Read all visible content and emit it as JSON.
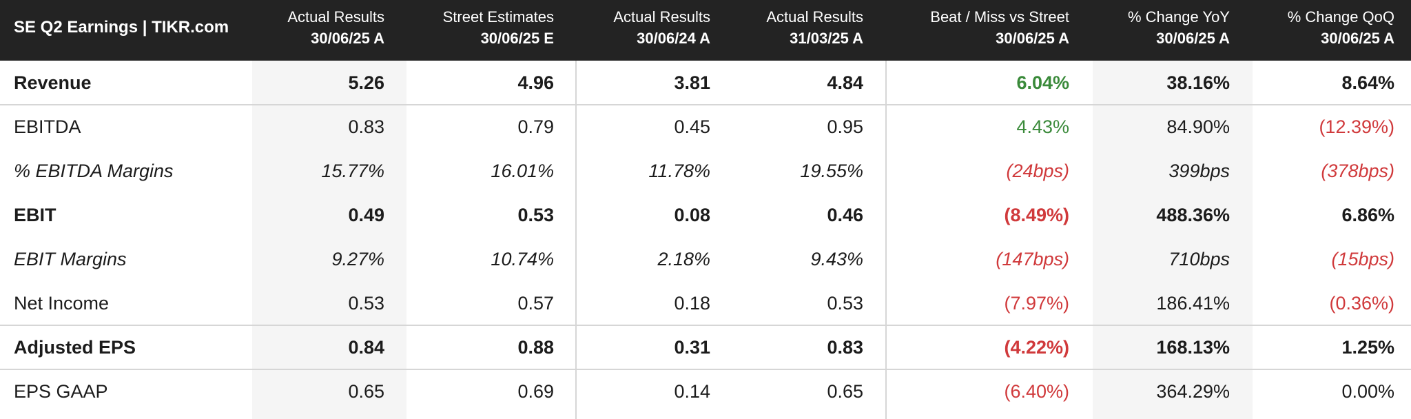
{
  "chart_data": {
    "type": "table",
    "title": "SE Q2 Earnings | TIKR.com",
    "columns": [
      {
        "label": "Actual Results",
        "period": "30/06/25 A"
      },
      {
        "label": "Street Estimates",
        "period": "30/06/25 E"
      },
      {
        "label": "Actual Results",
        "period": "30/06/24 A"
      },
      {
        "label": "Actual Results",
        "period": "31/03/25 A"
      },
      {
        "label": "Beat / Miss vs Street",
        "period": "30/06/25 A"
      },
      {
        "label": "% Change YoY",
        "period": "30/06/25 A"
      },
      {
        "label": "% Change QoQ",
        "period": "30/06/25 A"
      }
    ],
    "rows": [
      {
        "label": "Revenue",
        "values": [
          "5.26",
          "4.96",
          "3.81",
          "4.84",
          "6.04%",
          "38.16%",
          "8.64%"
        ],
        "tones": [
          "",
          "",
          "",
          "",
          "pos",
          "",
          ""
        ]
      },
      {
        "label": "EBITDA",
        "values": [
          "0.83",
          "0.79",
          "0.45",
          "0.95",
          "4.43%",
          "84.90%",
          "(12.39%)"
        ],
        "tones": [
          "",
          "",
          "",
          "",
          "pos",
          "",
          "neg"
        ]
      },
      {
        "label": "% EBITDA Margins",
        "values": [
          "15.77%",
          "16.01%",
          "11.78%",
          "19.55%",
          "(24bps)",
          "399bps",
          "(378bps)"
        ],
        "tones": [
          "",
          "",
          "",
          "",
          "neg",
          "",
          "neg"
        ]
      },
      {
        "label": "EBIT",
        "values": [
          "0.49",
          "0.53",
          "0.08",
          "0.46",
          "(8.49%)",
          "488.36%",
          "6.86%"
        ],
        "tones": [
          "",
          "",
          "",
          "",
          "neg",
          "",
          ""
        ]
      },
      {
        "label": "EBIT Margins",
        "values": [
          "9.27%",
          "10.74%",
          "2.18%",
          "9.43%",
          "(147bps)",
          "710bps",
          "(15bps)"
        ],
        "tones": [
          "",
          "",
          "",
          "",
          "neg",
          "",
          "neg"
        ]
      },
      {
        "label": "Net Income",
        "values": [
          "0.53",
          "0.57",
          "0.18",
          "0.53",
          "(7.97%)",
          "186.41%",
          "(0.36%)"
        ],
        "tones": [
          "",
          "",
          "",
          "",
          "neg",
          "",
          "neg"
        ]
      },
      {
        "label": "Adjusted EPS",
        "values": [
          "0.84",
          "0.88",
          "0.31",
          "0.83",
          "(4.22%)",
          "168.13%",
          "1.25%"
        ],
        "tones": [
          "",
          "",
          "",
          "",
          "neg",
          "",
          ""
        ]
      },
      {
        "label": "EPS GAAP",
        "values": [
          "0.65",
          "0.69",
          "0.14",
          "0.65",
          "(6.40%)",
          "364.29%",
          "0.00%"
        ],
        "tones": [
          "",
          "",
          "",
          "",
          "neg",
          "",
          ""
        ]
      }
    ],
    "colors": {
      "header_bg": "#232323",
      "positive": "#3a8a3a",
      "negative": "#d0393b",
      "shade": "#f5f5f5"
    }
  }
}
